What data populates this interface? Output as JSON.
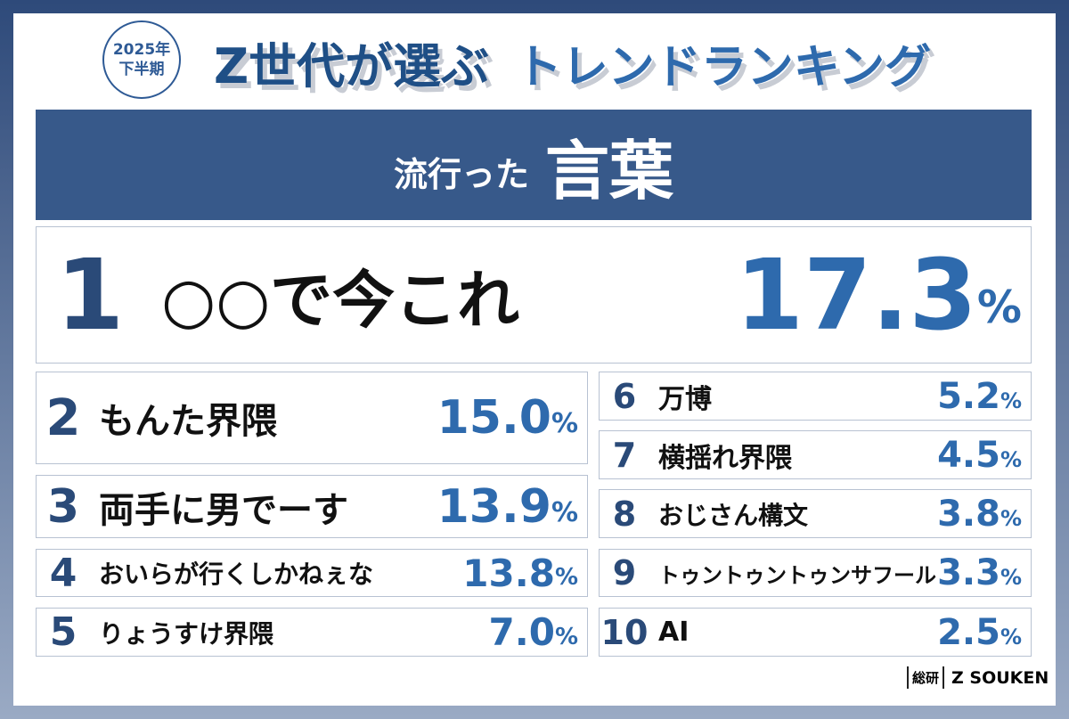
{
  "header": {
    "badge": [
      "2025年",
      "下半期"
    ],
    "title_main": "Z世代が選ぶ",
    "title_sub": "トレンドランキング"
  },
  "banner": {
    "small": "流行った",
    "large": "言葉"
  },
  "unit": "%",
  "ranking": [
    {
      "rank": 1,
      "name": "○○で今これ",
      "value": "17.3"
    },
    {
      "rank": 2,
      "name": "もんた界隈",
      "value": "15.0"
    },
    {
      "rank": 3,
      "name": "両手に男でーす",
      "value": "13.9"
    },
    {
      "rank": 4,
      "name": "おいらが行くしかねぇな",
      "value": "13.8"
    },
    {
      "rank": 5,
      "name": "りょうすけ界隈",
      "value": "7.0"
    },
    {
      "rank": 6,
      "name": "万博",
      "value": "5.2"
    },
    {
      "rank": 7,
      "name": "横揺れ界隈",
      "value": "4.5"
    },
    {
      "rank": 8,
      "name": "おじさん構文",
      "value": "3.8"
    },
    {
      "rank": 9,
      "name": "トゥントゥントゥンサフール",
      "value": "3.3"
    },
    {
      "rank": 10,
      "name": "AI",
      "value": "2.5"
    }
  ],
  "logo": {
    "mark": "総研",
    "name": "Z SOUKEN"
  }
}
